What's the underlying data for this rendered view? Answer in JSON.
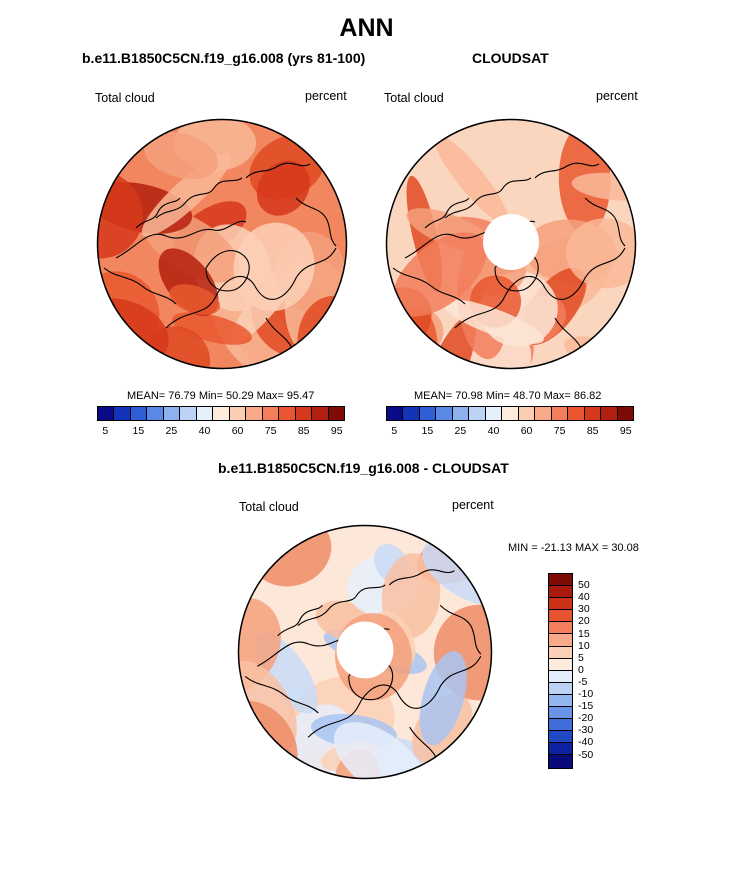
{
  "title": "ANN",
  "panel_model": {
    "subtitle": "b.e11.B1850C5CN.f19_g16.008 (yrs 81-100)",
    "left_label": "Total cloud",
    "right_label": "percent",
    "stats": "MEAN=  76.79  Min=  50.29  Max=  95.47"
  },
  "panel_obs": {
    "subtitle": "CLOUDSAT",
    "left_label": "Total cloud",
    "right_label": "percent",
    "stats": "MEAN=  70.98  Min=  48.70  Max=  86.82"
  },
  "abs_colorbar": {
    "colors": [
      "#0a0a8a",
      "#1533b8",
      "#2f5ed6",
      "#5a88e6",
      "#8db0ef",
      "#bdd3f6",
      "#e6effc",
      "#fdebdc",
      "#fbcdb1",
      "#f7a98a",
      "#f27e5c",
      "#ea5632",
      "#d6381b",
      "#b12010",
      "#7e0b04"
    ],
    "ticks": [
      "5",
      "15",
      "25",
      "40",
      "60",
      "75",
      "85",
      "95"
    ]
  },
  "panel_diff": {
    "subtitle": "b.e11.B1850C5CN.f19_g16.008 - CLOUDSAT",
    "left_label": "Total cloud",
    "right_label": "percent",
    "minmax": "MIN = -21.13 MAX =  30.08"
  },
  "diff_colorbar": {
    "colors": [
      "#7e0b04",
      "#a81a0d",
      "#cc3218",
      "#e6532e",
      "#f27e5c",
      "#f7a98a",
      "#fbd0b6",
      "#fdecde",
      "#e2ecfb",
      "#bcd2f5",
      "#94b6ef",
      "#6a94e8",
      "#3f6edc",
      "#2148c3",
      "#0d22a0",
      "#0a0a7a"
    ],
    "ticks": [
      "50",
      "40",
      "30",
      "20",
      "15",
      "10",
      "5",
      "0",
      "-5",
      "-10",
      "-15",
      "-20",
      "-30",
      "-40",
      "-50"
    ]
  },
  "map_palettes": {
    "model": {
      "base": "#f2865f",
      "blobs": [
        "#e9582f",
        "#e04a22",
        "#f9b898",
        "#d6381b",
        "#f5a07c",
        "#fbd0b6",
        "#b5200e"
      ]
    },
    "obs": {
      "base": "#fbd6bf",
      "blobs": [
        "#f9b898",
        "#f27e5c",
        "#e9582f",
        "#fde5d6",
        "#f5a07c",
        "#e04a22"
      ]
    },
    "diff": {
      "base": "#fde7d8",
      "blobs": [
        "#e6effc",
        "#c9dbf7",
        "#f9c0a2",
        "#f5a07c",
        "#ee8c66",
        "#a9c4f2",
        "#fbd0b6"
      ]
    }
  }
}
